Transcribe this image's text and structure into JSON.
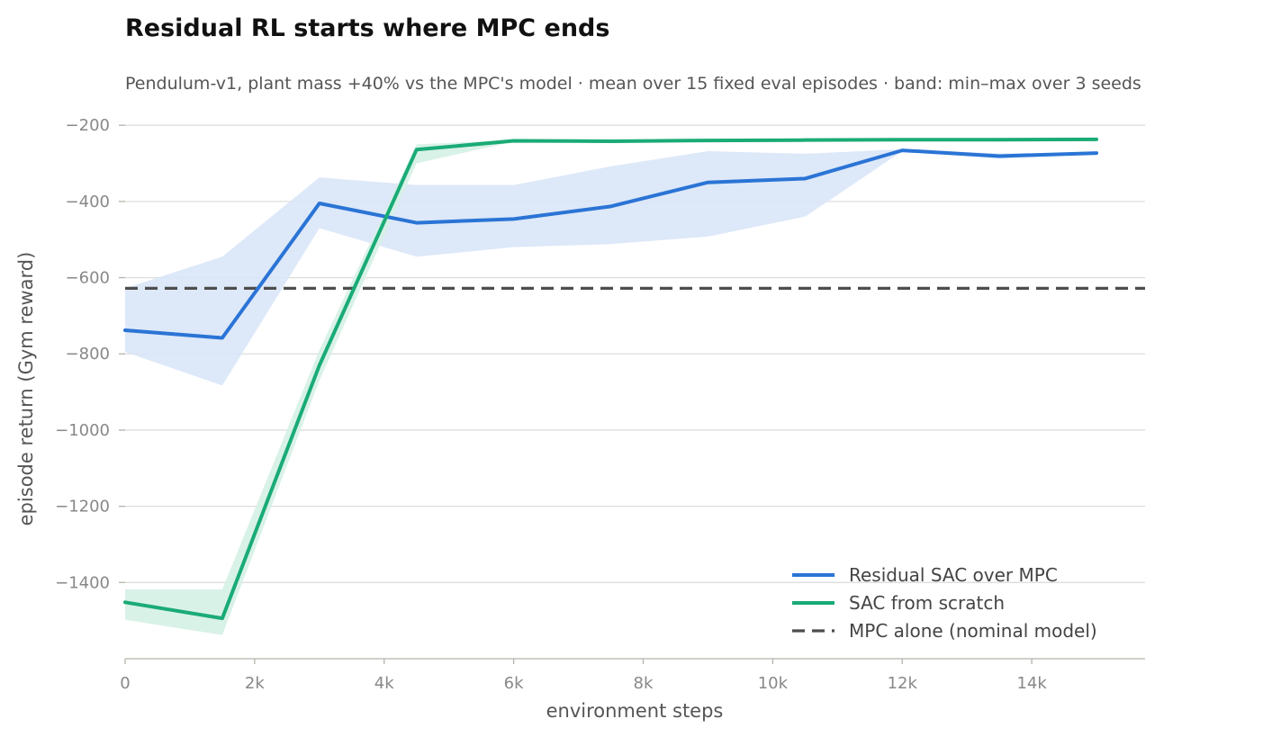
{
  "chart_data": {
    "type": "line",
    "title": "Residual RL starts where MPC ends",
    "subtitle": "Pendulum-v1, plant mass +40% vs the MPC's model · mean over 15 fixed eval episodes · band: min–max over 3 seeds",
    "xlabel": "environment steps",
    "ylabel": "episode return (Gym reward)",
    "xlim": [
      0,
      15750
    ],
    "ylim": [
      -1600,
      -150
    ],
    "x_ticks": [
      0,
      2000,
      4000,
      6000,
      8000,
      10000,
      12000,
      14000
    ],
    "x_tick_labels": [
      "0",
      "2k",
      "4k",
      "6k",
      "8k",
      "10k",
      "12k",
      "14k"
    ],
    "y_ticks": [
      -1400,
      -1200,
      -1000,
      -800,
      -600,
      -400,
      -200
    ],
    "y_tick_labels": [
      "−1400",
      "−1200",
      "−1000",
      "−800",
      "−600",
      "−400",
      "−200"
    ],
    "grid": "horizontal",
    "legend_position": "bottom-right",
    "x": [
      0,
      1500,
      3000,
      4500,
      6000,
      7500,
      9000,
      10500,
      12000,
      13500,
      15000
    ],
    "series": [
      {
        "name": "Residual SAC over MPC",
        "color": "#2a74d5",
        "band_color": "#d9e6f8",
        "values": [
          -738,
          -758,
          -405,
          -456,
          -446,
          -413,
          -350,
          -340,
          -266,
          -281,
          -273
        ],
        "band_upper": [
          -628,
          -545,
          -337,
          -357,
          -357,
          -308,
          -268,
          -275,
          -263,
          -274,
          -271
        ],
        "band_lower": [
          -795,
          -883,
          -470,
          -545,
          -520,
          -512,
          -492,
          -440,
          -268,
          -288,
          -275
        ]
      },
      {
        "name": "SAC from scratch",
        "color": "#1aab76",
        "band_color": "#d5f1e5",
        "values": [
          -1452,
          -1494,
          -830,
          -264,
          -241,
          -242,
          -240,
          -239,
          -238,
          -238,
          -237
        ],
        "band_upper": [
          -1418,
          -1418,
          -790,
          -250,
          -239,
          -240,
          -238,
          -237,
          -236,
          -236,
          -235
        ],
        "band_lower": [
          -1498,
          -1538,
          -870,
          -300,
          -243,
          -244,
          -242,
          -241,
          -240,
          -240,
          -239
        ]
      }
    ],
    "reference_lines": [
      {
        "name": "MPC alone (nominal model)",
        "value": -628,
        "color": "#4d4d4d",
        "style": "dashed"
      }
    ]
  }
}
